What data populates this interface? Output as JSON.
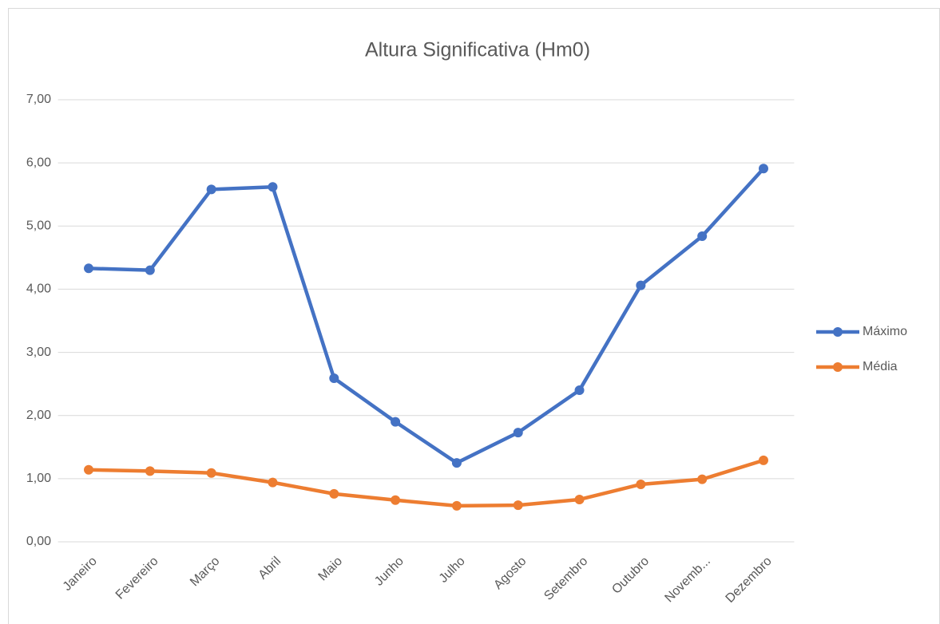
{
  "chart_data": {
    "type": "line",
    "title": "Altura Significativa (Hm0)",
    "categories": [
      "Janeiro",
      "Fevereiro",
      "Março",
      "Abril",
      "Maio",
      "Junho",
      "Julho",
      "Agosto",
      "Setembro",
      "Outubro",
      "Novemb...",
      "Dezembro"
    ],
    "series": [
      {
        "name": "Máximo",
        "color": "#4472c4",
        "values": [
          4.33,
          4.3,
          5.58,
          5.62,
          2.59,
          1.9,
          1.25,
          1.73,
          2.4,
          4.06,
          4.84,
          5.91
        ]
      },
      {
        "name": "Média",
        "color": "#ed7d31",
        "values": [
          1.14,
          1.12,
          1.09,
          0.94,
          0.76,
          0.66,
          0.57,
          0.58,
          0.67,
          0.91,
          0.99,
          1.29
        ]
      }
    ],
    "ylim": [
      0,
      7
    ],
    "yticks": [
      {
        "value": 0,
        "label": "0,00"
      },
      {
        "value": 1,
        "label": "1,00"
      },
      {
        "value": 2,
        "label": "2,00"
      },
      {
        "value": 3,
        "label": "3,00"
      },
      {
        "value": 4,
        "label": "4,00"
      },
      {
        "value": 5,
        "label": "5,00"
      },
      {
        "value": 6,
        "label": "6,00"
      },
      {
        "value": 7,
        "label": "7,00"
      }
    ],
    "grid": true,
    "legend": "right"
  }
}
